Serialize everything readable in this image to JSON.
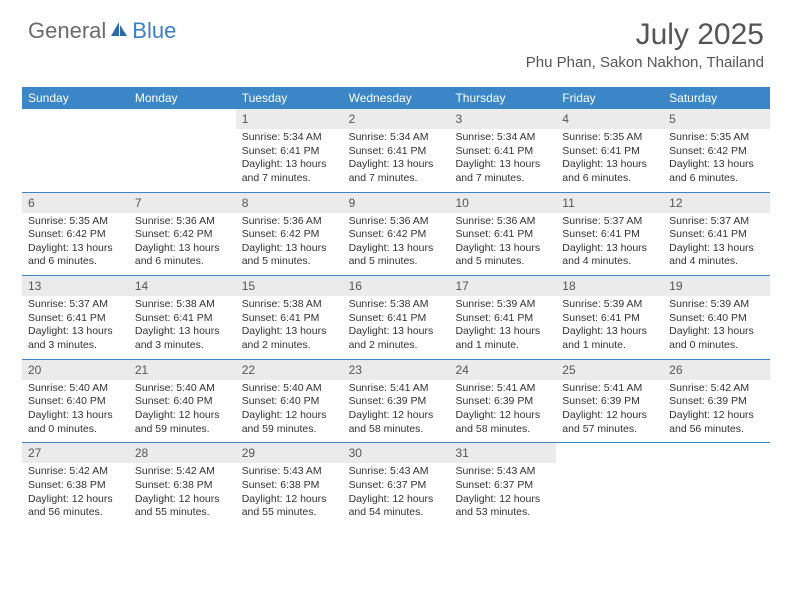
{
  "logo": {
    "general": "General",
    "blue": "Blue"
  },
  "title": "July 2025",
  "location": "Phu Phan, Sakon Nakhon, Thailand",
  "colors": {
    "header_bg": "#3b86c7",
    "header_text": "#ffffff",
    "daynum_bg": "#ebebeb",
    "border": "#3b86c7"
  },
  "weekdays": [
    "Sunday",
    "Monday",
    "Tuesday",
    "Wednesday",
    "Thursday",
    "Friday",
    "Saturday"
  ],
  "weeks": [
    [
      {
        "empty": true
      },
      {
        "empty": true
      },
      {
        "n": "1",
        "sunrise": "Sunrise: 5:34 AM",
        "sunset": "Sunset: 6:41 PM",
        "daylight1": "Daylight: 13 hours",
        "daylight2": "and 7 minutes."
      },
      {
        "n": "2",
        "sunrise": "Sunrise: 5:34 AM",
        "sunset": "Sunset: 6:41 PM",
        "daylight1": "Daylight: 13 hours",
        "daylight2": "and 7 minutes."
      },
      {
        "n": "3",
        "sunrise": "Sunrise: 5:34 AM",
        "sunset": "Sunset: 6:41 PM",
        "daylight1": "Daylight: 13 hours",
        "daylight2": "and 7 minutes."
      },
      {
        "n": "4",
        "sunrise": "Sunrise: 5:35 AM",
        "sunset": "Sunset: 6:41 PM",
        "daylight1": "Daylight: 13 hours",
        "daylight2": "and 6 minutes."
      },
      {
        "n": "5",
        "sunrise": "Sunrise: 5:35 AM",
        "sunset": "Sunset: 6:42 PM",
        "daylight1": "Daylight: 13 hours",
        "daylight2": "and 6 minutes."
      }
    ],
    [
      {
        "n": "6",
        "sunrise": "Sunrise: 5:35 AM",
        "sunset": "Sunset: 6:42 PM",
        "daylight1": "Daylight: 13 hours",
        "daylight2": "and 6 minutes."
      },
      {
        "n": "7",
        "sunrise": "Sunrise: 5:36 AM",
        "sunset": "Sunset: 6:42 PM",
        "daylight1": "Daylight: 13 hours",
        "daylight2": "and 6 minutes."
      },
      {
        "n": "8",
        "sunrise": "Sunrise: 5:36 AM",
        "sunset": "Sunset: 6:42 PM",
        "daylight1": "Daylight: 13 hours",
        "daylight2": "and 5 minutes."
      },
      {
        "n": "9",
        "sunrise": "Sunrise: 5:36 AM",
        "sunset": "Sunset: 6:42 PM",
        "daylight1": "Daylight: 13 hours",
        "daylight2": "and 5 minutes."
      },
      {
        "n": "10",
        "sunrise": "Sunrise: 5:36 AM",
        "sunset": "Sunset: 6:41 PM",
        "daylight1": "Daylight: 13 hours",
        "daylight2": "and 5 minutes."
      },
      {
        "n": "11",
        "sunrise": "Sunrise: 5:37 AM",
        "sunset": "Sunset: 6:41 PM",
        "daylight1": "Daylight: 13 hours",
        "daylight2": "and 4 minutes."
      },
      {
        "n": "12",
        "sunrise": "Sunrise: 5:37 AM",
        "sunset": "Sunset: 6:41 PM",
        "daylight1": "Daylight: 13 hours",
        "daylight2": "and 4 minutes."
      }
    ],
    [
      {
        "n": "13",
        "sunrise": "Sunrise: 5:37 AM",
        "sunset": "Sunset: 6:41 PM",
        "daylight1": "Daylight: 13 hours",
        "daylight2": "and 3 minutes."
      },
      {
        "n": "14",
        "sunrise": "Sunrise: 5:38 AM",
        "sunset": "Sunset: 6:41 PM",
        "daylight1": "Daylight: 13 hours",
        "daylight2": "and 3 minutes."
      },
      {
        "n": "15",
        "sunrise": "Sunrise: 5:38 AM",
        "sunset": "Sunset: 6:41 PM",
        "daylight1": "Daylight: 13 hours",
        "daylight2": "and 2 minutes."
      },
      {
        "n": "16",
        "sunrise": "Sunrise: 5:38 AM",
        "sunset": "Sunset: 6:41 PM",
        "daylight1": "Daylight: 13 hours",
        "daylight2": "and 2 minutes."
      },
      {
        "n": "17",
        "sunrise": "Sunrise: 5:39 AM",
        "sunset": "Sunset: 6:41 PM",
        "daylight1": "Daylight: 13 hours",
        "daylight2": "and 1 minute."
      },
      {
        "n": "18",
        "sunrise": "Sunrise: 5:39 AM",
        "sunset": "Sunset: 6:41 PM",
        "daylight1": "Daylight: 13 hours",
        "daylight2": "and 1 minute."
      },
      {
        "n": "19",
        "sunrise": "Sunrise: 5:39 AM",
        "sunset": "Sunset: 6:40 PM",
        "daylight1": "Daylight: 13 hours",
        "daylight2": "and 0 minutes."
      }
    ],
    [
      {
        "n": "20",
        "sunrise": "Sunrise: 5:40 AM",
        "sunset": "Sunset: 6:40 PM",
        "daylight1": "Daylight: 13 hours",
        "daylight2": "and 0 minutes."
      },
      {
        "n": "21",
        "sunrise": "Sunrise: 5:40 AM",
        "sunset": "Sunset: 6:40 PM",
        "daylight1": "Daylight: 12 hours",
        "daylight2": "and 59 minutes."
      },
      {
        "n": "22",
        "sunrise": "Sunrise: 5:40 AM",
        "sunset": "Sunset: 6:40 PM",
        "daylight1": "Daylight: 12 hours",
        "daylight2": "and 59 minutes."
      },
      {
        "n": "23",
        "sunrise": "Sunrise: 5:41 AM",
        "sunset": "Sunset: 6:39 PM",
        "daylight1": "Daylight: 12 hours",
        "daylight2": "and 58 minutes."
      },
      {
        "n": "24",
        "sunrise": "Sunrise: 5:41 AM",
        "sunset": "Sunset: 6:39 PM",
        "daylight1": "Daylight: 12 hours",
        "daylight2": "and 58 minutes."
      },
      {
        "n": "25",
        "sunrise": "Sunrise: 5:41 AM",
        "sunset": "Sunset: 6:39 PM",
        "daylight1": "Daylight: 12 hours",
        "daylight2": "and 57 minutes."
      },
      {
        "n": "26",
        "sunrise": "Sunrise: 5:42 AM",
        "sunset": "Sunset: 6:39 PM",
        "daylight1": "Daylight: 12 hours",
        "daylight2": "and 56 minutes."
      }
    ],
    [
      {
        "n": "27",
        "sunrise": "Sunrise: 5:42 AM",
        "sunset": "Sunset: 6:38 PM",
        "daylight1": "Daylight: 12 hours",
        "daylight2": "and 56 minutes."
      },
      {
        "n": "28",
        "sunrise": "Sunrise: 5:42 AM",
        "sunset": "Sunset: 6:38 PM",
        "daylight1": "Daylight: 12 hours",
        "daylight2": "and 55 minutes."
      },
      {
        "n": "29",
        "sunrise": "Sunrise: 5:43 AM",
        "sunset": "Sunset: 6:38 PM",
        "daylight1": "Daylight: 12 hours",
        "daylight2": "and 55 minutes."
      },
      {
        "n": "30",
        "sunrise": "Sunrise: 5:43 AM",
        "sunset": "Sunset: 6:37 PM",
        "daylight1": "Daylight: 12 hours",
        "daylight2": "and 54 minutes."
      },
      {
        "n": "31",
        "sunrise": "Sunrise: 5:43 AM",
        "sunset": "Sunset: 6:37 PM",
        "daylight1": "Daylight: 12 hours",
        "daylight2": "and 53 minutes."
      },
      {
        "empty": true
      },
      {
        "empty": true
      }
    ]
  ]
}
